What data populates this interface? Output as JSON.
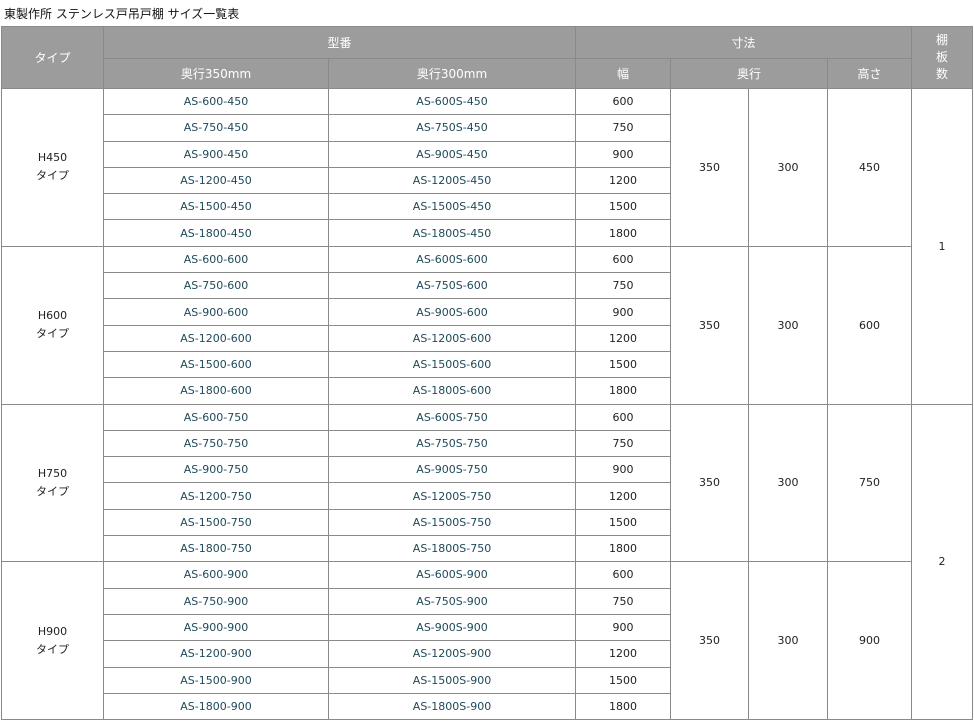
{
  "title": "東製作所  ステンレス戸吊戸棚  サイズ一覧表",
  "header": {
    "type": "タイプ",
    "model": "型番",
    "depth350": "奥行350mm",
    "depth300": "奥行300mm",
    "dimensions": "寸法",
    "width": "幅",
    "depth": "奥行",
    "height": "高さ",
    "shelves": "棚\n板\n数"
  },
  "groups": [
    {
      "type": "H450\nタイプ",
      "depth350": "350",
      "depth300": "300",
      "height": "450",
      "rows": [
        [
          "AS-600-450",
          "AS-600S-450",
          "600"
        ],
        [
          "AS-750-450",
          "AS-750S-450",
          "750"
        ],
        [
          "AS-900-450",
          "AS-900S-450",
          "900"
        ],
        [
          "AS-1200-450",
          "AS-1200S-450",
          "1200"
        ],
        [
          "AS-1500-450",
          "AS-1500S-450",
          "1500"
        ],
        [
          "AS-1800-450",
          "AS-1800S-450",
          "1800"
        ]
      ]
    },
    {
      "type": "H600\nタイプ",
      "depth350": "350",
      "depth300": "300",
      "height": "600",
      "rows": [
        [
          "AS-600-600",
          "AS-600S-600",
          "600"
        ],
        [
          "AS-750-600",
          "AS-750S-600",
          "750"
        ],
        [
          "AS-900-600",
          "AS-900S-600",
          "900"
        ],
        [
          "AS-1200-600",
          "AS-1200S-600",
          "1200"
        ],
        [
          "AS-1500-600",
          "AS-1500S-600",
          "1500"
        ],
        [
          "AS-1800-600",
          "AS-1800S-600",
          "1800"
        ]
      ]
    },
    {
      "type": "H750\nタイプ",
      "depth350": "350",
      "depth300": "300",
      "height": "750",
      "rows": [
        [
          "AS-600-750",
          "AS-600S-750",
          "600"
        ],
        [
          "AS-750-750",
          "AS-750S-750",
          "750"
        ],
        [
          "AS-900-750",
          "AS-900S-750",
          "900"
        ],
        [
          "AS-1200-750",
          "AS-1200S-750",
          "1200"
        ],
        [
          "AS-1500-750",
          "AS-1500S-750",
          "1500"
        ],
        [
          "AS-1800-750",
          "AS-1800S-750",
          "1800"
        ]
      ]
    },
    {
      "type": "H900\nタイプ",
      "depth350": "350",
      "depth300": "300",
      "height": "900",
      "rows": [
        [
          "AS-600-900",
          "AS-600S-900",
          "600"
        ],
        [
          "AS-750-900",
          "AS-750S-900",
          "750"
        ],
        [
          "AS-900-900",
          "AS-900S-900",
          "900"
        ],
        [
          "AS-1200-900",
          "AS-1200S-900",
          "1200"
        ],
        [
          "AS-1500-900",
          "AS-1500S-900",
          "1500"
        ],
        [
          "AS-1800-900",
          "AS-1800S-900",
          "1800"
        ]
      ]
    }
  ],
  "shelves": [
    "1",
    "2"
  ]
}
